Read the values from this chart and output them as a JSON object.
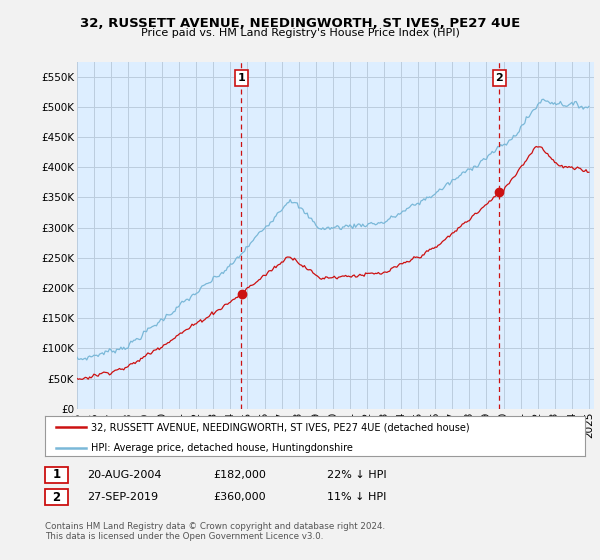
{
  "title": "32, RUSSETT AVENUE, NEEDINGWORTH, ST IVES, PE27 4UE",
  "subtitle": "Price paid vs. HM Land Registry's House Price Index (HPI)",
  "ylim": [
    0,
    575000
  ],
  "xlim_start": 1995.0,
  "xlim_end": 2025.3,
  "yticks": [
    0,
    50000,
    100000,
    150000,
    200000,
    250000,
    300000,
    350000,
    400000,
    450000,
    500000,
    550000
  ],
  "ytick_labels": [
    "£0",
    "£50K",
    "£100K",
    "£150K",
    "£200K",
    "£250K",
    "£300K",
    "£350K",
    "£400K",
    "£450K",
    "£500K",
    "£550K"
  ],
  "xticks": [
    1995,
    1996,
    1997,
    1998,
    1999,
    2000,
    2001,
    2002,
    2003,
    2004,
    2005,
    2006,
    2007,
    2008,
    2009,
    2010,
    2011,
    2012,
    2013,
    2014,
    2015,
    2016,
    2017,
    2018,
    2019,
    2020,
    2021,
    2022,
    2023,
    2024,
    2025
  ],
  "hpi_color": "#7ab8d8",
  "sale_color": "#cc1111",
  "plot_bg_color": "#ddeeff",
  "grid_color": "#bbccdd",
  "outer_bg": "#f2f2f2",
  "sale1_x": 2004.635,
  "sale1_y": 182000,
  "sale2_x": 2019.745,
  "sale2_y": 360000,
  "legend_line1": "32, RUSSETT AVENUE, NEEDINGWORTH, ST IVES, PE27 4UE (detached house)",
  "legend_line2": "HPI: Average price, detached house, Huntingdonshire",
  "info1_num": "1",
  "info1_date": "20-AUG-2004",
  "info1_price": "£182,000",
  "info1_hpi": "22% ↓ HPI",
  "info2_num": "2",
  "info2_date": "27-SEP-2019",
  "info2_price": "£360,000",
  "info2_hpi": "11% ↓ HPI",
  "footer": "Contains HM Land Registry data © Crown copyright and database right 2024.\nThis data is licensed under the Open Government Licence v3.0."
}
